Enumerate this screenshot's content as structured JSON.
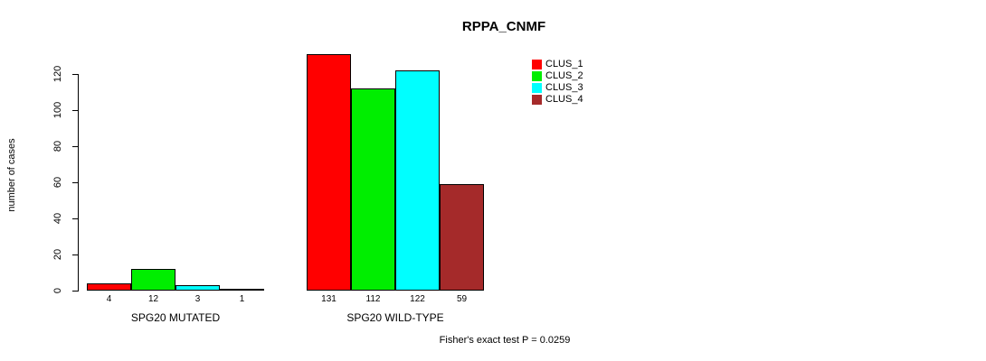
{
  "title": "RPPA_CNMF",
  "chart_data": {
    "type": "bar",
    "title": "RPPA_CNMF",
    "ylabel": "number of cases",
    "xlabel": "",
    "ylim": [
      0,
      120
    ],
    "yticks": [
      0,
      20,
      40,
      60,
      80,
      100,
      120
    ],
    "grid": false,
    "categories": [
      "SPG20 MUTATED",
      "SPG20 WILD-TYPE"
    ],
    "series": [
      {
        "name": "CLUS_1",
        "color": "#ff0000",
        "values": [
          4,
          131
        ]
      },
      {
        "name": "CLUS_2",
        "color": "#00ee00",
        "values": [
          12,
          112
        ]
      },
      {
        "name": "CLUS_3",
        "color": "#00ffff",
        "values": [
          3,
          122
        ]
      },
      {
        "name": "CLUS_4",
        "color": "#a52a2a",
        "values": [
          1,
          59
        ]
      }
    ],
    "bar_value_labels": [
      [
        "4",
        "12",
        "3",
        "1"
      ],
      [
        "131",
        "112",
        "122",
        "59"
      ]
    ],
    "legend_position": "top-right",
    "annotation": "Fisher's exact test P = 0.0259"
  }
}
